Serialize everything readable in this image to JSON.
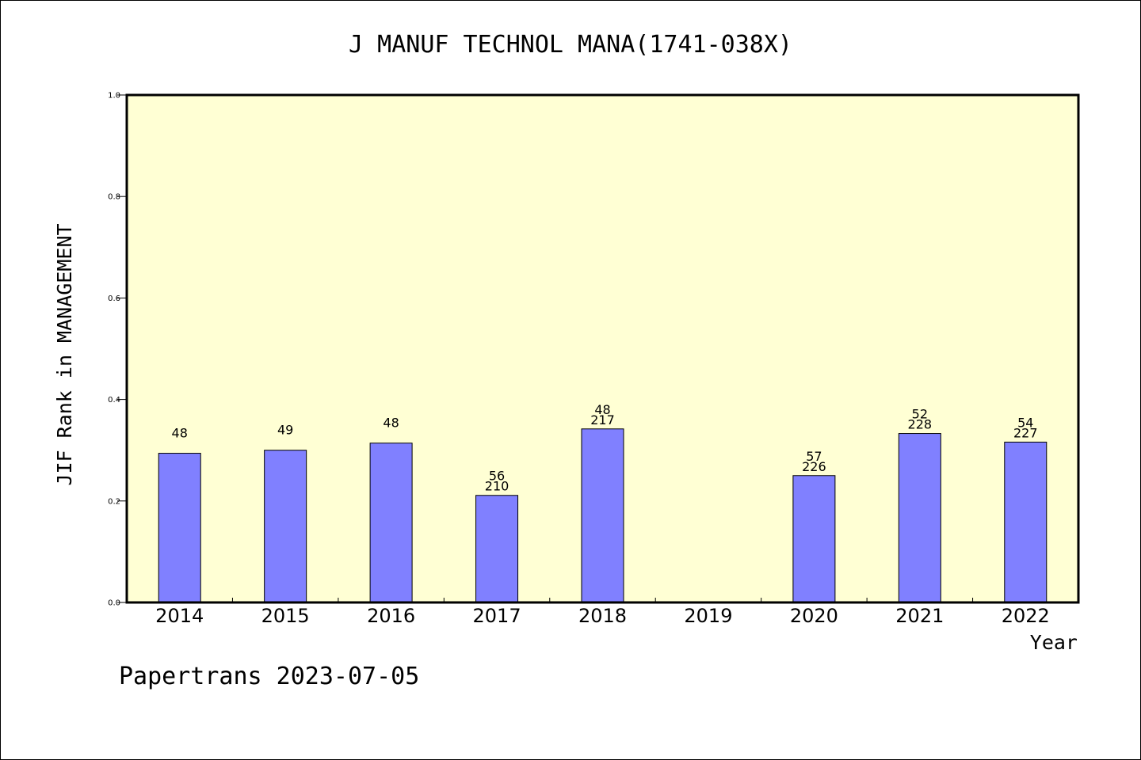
{
  "chart_data": {
    "type": "bar",
    "title": "J MANUF TECHNOL MANA(1741-038X)",
    "xlabel": "Year",
    "ylabel": "JIF Rank in MANAGEMENT",
    "ylim": [
      0,
      1.0
    ],
    "yticks": [
      "0.0",
      "0.2",
      "0.4",
      "0.6",
      "0.8",
      "1.0"
    ],
    "categories": [
      "2014",
      "2015",
      "2016",
      "2017",
      "2018",
      "2019",
      "2020",
      "2021",
      "2022"
    ],
    "values": [
      0.294,
      0.3,
      0.314,
      0.211,
      0.342,
      null,
      0.25,
      0.333,
      0.316
    ],
    "rank_labels": [
      "48",
      "49",
      "48",
      "56",
      "48",
      "",
      "57",
      "52",
      "54"
    ],
    "total_labels": [
      "",
      "",
      "",
      "210",
      "217",
      "",
      "226",
      "228",
      "227"
    ],
    "grid": false,
    "colors": {
      "bar": "#8080ff",
      "plot_background": "#ffffd4",
      "bar_edge": "#000000"
    }
  },
  "footer": {
    "text": "Papertrans 2023-07-05"
  }
}
